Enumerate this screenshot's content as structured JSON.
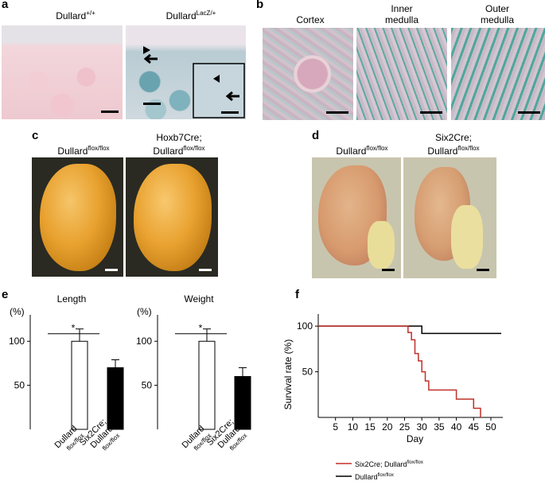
{
  "panels": {
    "a": {
      "letter": "a",
      "label_left": "Dullard",
      "sup_left": "+/+",
      "label_right": "Dullard",
      "sup_right": "LacZ/+"
    },
    "b": {
      "letter": "b",
      "label_1": "Cortex",
      "label_2": "Inner\nmedulla",
      "label_3": "Outer\nmedulla"
    },
    "c": {
      "letter": "c",
      "label_left": "Dullard",
      "sup_left": "flox/flox",
      "label_right_1": "Hoxb7Cre;",
      "label_right_2": "Dullard",
      "sup_right": "flox/flox"
    },
    "d": {
      "letter": "d",
      "label_left": "Dullard",
      "sup_left": "flox/flox",
      "label_right_1": "Six2Cre;",
      "label_right_2": "Dullard",
      "sup_right": "flox/flox"
    },
    "e": {
      "letter": "e"
    },
    "f": {
      "letter": "f"
    }
  },
  "chart_data": [
    {
      "type": "bar",
      "title": "Length",
      "ylabel": "(%)",
      "yticks": [
        50,
        100
      ],
      "ylim": [
        0,
        130
      ],
      "categories": [
        "Dullard flox/flox",
        "Six2Cre; Dullard flox/flox"
      ],
      "category_labels": [
        [
          "Dullard",
          "flox/flox"
        ],
        [
          "Six2Cre;",
          "Dullard",
          "flox/flox"
        ]
      ],
      "values": [
        100,
        70
      ],
      "errors": [
        14,
        9
      ],
      "colors": [
        "#ffffff",
        "#000000"
      ],
      "significance": "*"
    },
    {
      "type": "bar",
      "title": "Weight",
      "ylabel": "(%)",
      "yticks": [
        50,
        100
      ],
      "ylim": [
        0,
        130
      ],
      "categories": [
        "Dullard flox/flox",
        "Six2Cre; Dullard flox/flox"
      ],
      "category_labels": [
        [
          "Dullard",
          "flox/flox"
        ],
        [
          "Six2Cre;",
          "Dullard",
          "flox/flox"
        ]
      ],
      "values": [
        100,
        60
      ],
      "errors": [
        14,
        10
      ],
      "colors": [
        "#ffffff",
        "#000000"
      ],
      "significance": "*"
    },
    {
      "type": "line",
      "xlabel": "Day",
      "ylabel": "Survival rate (%)",
      "xticks": [
        5,
        10,
        15,
        20,
        25,
        30,
        35,
        40,
        45,
        50
      ],
      "yticks": [
        50,
        100
      ],
      "xlim": [
        0,
        53
      ],
      "ylim": [
        0,
        108
      ],
      "series": [
        {
          "name": "Six2Cre; Dullard flox/flox",
          "name_main": "Six2Cre; Dullard",
          "name_sup": "flox/flox",
          "color": "#c0302a",
          "x": [
            0,
            26,
            26,
            27,
            27,
            28,
            28,
            29,
            29,
            30,
            30,
            31,
            31,
            32,
            32,
            40,
            40,
            45,
            45,
            47,
            47
          ],
          "y": [
            100,
            100,
            93,
            93,
            85,
            85,
            70,
            70,
            62,
            62,
            50,
            50,
            40,
            40,
            30,
            30,
            20,
            20,
            10,
            10,
            0
          ]
        },
        {
          "name": "Dullard flox/flox",
          "name_main": "Dullard",
          "name_sup": "flox/flox",
          "color": "#000000",
          "x": [
            0,
            30,
            30,
            53
          ],
          "y": [
            100,
            100,
            92,
            92
          ]
        }
      ]
    }
  ]
}
